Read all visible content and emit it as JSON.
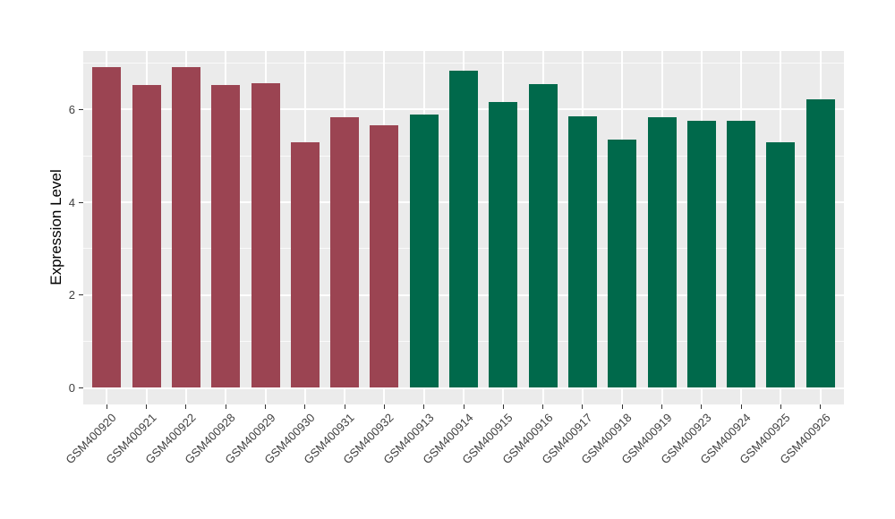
{
  "chart_data": {
    "type": "bar",
    "title": "",
    "xlabel": "",
    "ylabel": "Expression Level",
    "categories": [
      "GSM400920",
      "GSM400921",
      "GSM400922",
      "GSM400928",
      "GSM400929",
      "GSM400930",
      "GSM400931",
      "GSM400932",
      "GSM400913",
      "GSM400914",
      "GSM400915",
      "GSM400916",
      "GSM400917",
      "GSM400918",
      "GSM400919",
      "GSM400923",
      "GSM400924",
      "GSM400925",
      "GSM400926"
    ],
    "values": [
      6.92,
      6.53,
      6.92,
      6.53,
      6.56,
      5.3,
      5.84,
      5.67,
      5.9,
      6.84,
      6.17,
      6.55,
      5.85,
      5.35,
      5.84,
      5.75,
      5.76,
      5.3,
      6.22
    ],
    "bar_groups": [
      "group1",
      "group1",
      "group1",
      "group1",
      "group1",
      "group1",
      "group1",
      "group1",
      "group2",
      "group2",
      "group2",
      "group2",
      "group2",
      "group2",
      "group2",
      "group2",
      "group2",
      "group2",
      "group2"
    ],
    "group_colors": {
      "group1": "#9B4452",
      "group2": "#00694B"
    },
    "y_ticks": [
      0,
      2,
      4,
      6
    ],
    "y_minor_ticks": [
      1,
      3,
      5,
      7
    ],
    "ylim": [
      -0.36,
      7.26
    ],
    "x_label_angle": 45,
    "legend": "none",
    "grid": "on",
    "panel_background": "#EBEBEB",
    "grid_color": "#FFFFFF",
    "tick_mark_color": "#333333",
    "figure_background": "#FFFFFF"
  }
}
